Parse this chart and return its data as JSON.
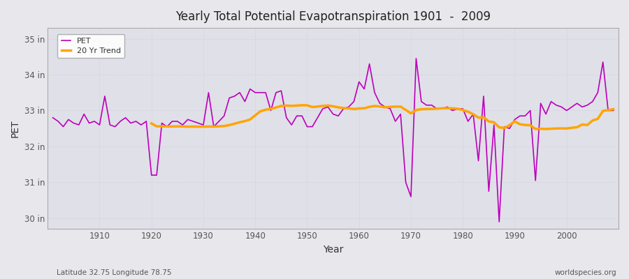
{
  "title": "Yearly Total Potential Evapotranspiration 1901  -  2009",
  "xlabel": "Year",
  "ylabel": "PET",
  "subtitle_left": "Latitude 32.75 Longitude 78.75",
  "subtitle_right": "worldspecies.org",
  "pet_color": "#BB00BB",
  "trend_color": "#FFA500",
  "bg_color": "#E8E8EC",
  "plot_bg_color": "#E0E0E8",
  "grid_color": "#CCCCDD",
  "ylim": [
    29.7,
    35.3
  ],
  "yticks": [
    30,
    31,
    32,
    33,
    34,
    35
  ],
  "ytick_labels": [
    "30 in",
    "31 in",
    "32 in",
    "33 in",
    "34 in",
    "35 in"
  ],
  "xlim": [
    1900,
    2010
  ],
  "years": [
    1901,
    1902,
    1903,
    1904,
    1905,
    1906,
    1907,
    1908,
    1909,
    1910,
    1911,
    1912,
    1913,
    1914,
    1915,
    1916,
    1917,
    1918,
    1919,
    1920,
    1921,
    1922,
    1923,
    1924,
    1925,
    1926,
    1927,
    1928,
    1929,
    1930,
    1931,
    1932,
    1933,
    1934,
    1935,
    1936,
    1937,
    1938,
    1939,
    1940,
    1941,
    1942,
    1943,
    1944,
    1945,
    1946,
    1947,
    1948,
    1949,
    1950,
    1951,
    1952,
    1953,
    1954,
    1955,
    1956,
    1957,
    1958,
    1959,
    1960,
    1961,
    1962,
    1963,
    1964,
    1965,
    1966,
    1967,
    1968,
    1969,
    1970,
    1971,
    1972,
    1973,
    1974,
    1975,
    1976,
    1977,
    1978,
    1979,
    1980,
    1981,
    1982,
    1983,
    1984,
    1985,
    1986,
    1987,
    1988,
    1989,
    1990,
    1991,
    1992,
    1993,
    1994,
    1995,
    1996,
    1997,
    1998,
    1999,
    2000,
    2001,
    2002,
    2003,
    2004,
    2005,
    2006,
    2007,
    2008,
    2009
  ],
  "pet_values": [
    32.8,
    32.7,
    32.55,
    32.75,
    32.65,
    32.6,
    32.9,
    32.65,
    32.7,
    32.6,
    33.4,
    32.6,
    32.55,
    32.7,
    32.8,
    32.65,
    32.7,
    32.6,
    32.7,
    31.2,
    31.2,
    32.65,
    32.55,
    32.7,
    32.7,
    32.6,
    32.75,
    32.7,
    32.65,
    32.6,
    33.5,
    32.55,
    32.7,
    32.85,
    33.35,
    33.4,
    33.5,
    33.25,
    33.6,
    33.5,
    33.5,
    33.5,
    33.0,
    33.5,
    33.55,
    32.8,
    32.6,
    32.85,
    32.85,
    32.55,
    32.55,
    32.8,
    33.05,
    33.1,
    32.9,
    32.85,
    33.05,
    33.1,
    33.25,
    33.8,
    33.6,
    34.3,
    33.5,
    33.2,
    33.1,
    33.05,
    32.7,
    32.9,
    31.0,
    30.6,
    34.45,
    33.25,
    33.15,
    33.15,
    33.05,
    33.05,
    33.1,
    33.0,
    33.05,
    33.05,
    32.7,
    32.9,
    31.6,
    33.4,
    30.75,
    32.6,
    29.9,
    32.55,
    32.5,
    32.75,
    32.85,
    32.85,
    33.0,
    31.05,
    33.2,
    32.9,
    33.25,
    33.15,
    33.1,
    33.0,
    33.1,
    33.2,
    33.1,
    33.15,
    33.25,
    33.5,
    34.35,
    33.0,
    33.0
  ]
}
